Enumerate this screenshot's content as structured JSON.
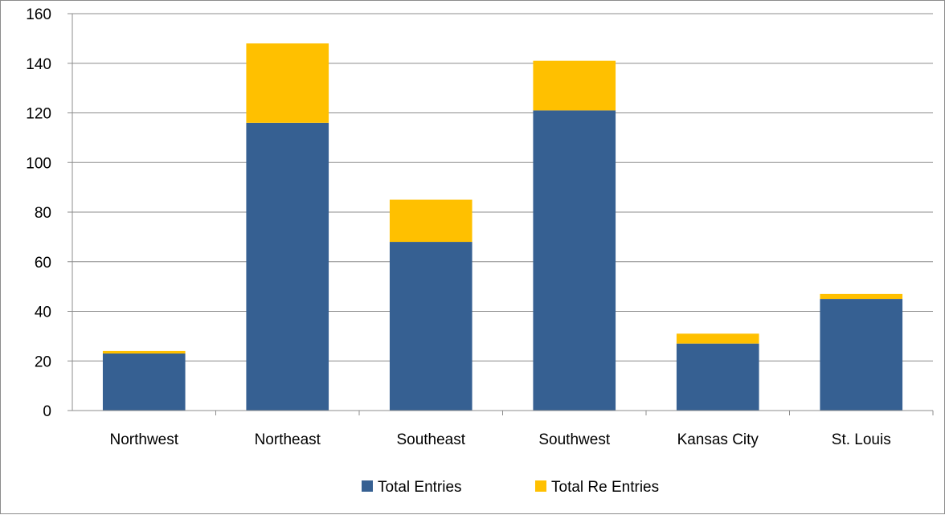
{
  "chart_data": {
    "type": "bar",
    "stacked": true,
    "categories": [
      "Northwest",
      "Northeast",
      "Southeast",
      "Southwest",
      "Kansas City",
      "St. Louis"
    ],
    "series": [
      {
        "name": "Total Entries",
        "color": "#366092",
        "values": [
          23,
          116,
          68,
          121,
          27,
          45
        ]
      },
      {
        "name": "Total Re Entries",
        "color": "#FFC000",
        "values": [
          1,
          32,
          17,
          20,
          4,
          2
        ]
      }
    ],
    "title": "",
    "xlabel": "",
    "ylabel": "",
    "ylim": [
      0,
      160
    ],
    "yticks": [
      0,
      20,
      40,
      60,
      80,
      100,
      120,
      140,
      160
    ],
    "grid": true,
    "legend": "bottom"
  }
}
